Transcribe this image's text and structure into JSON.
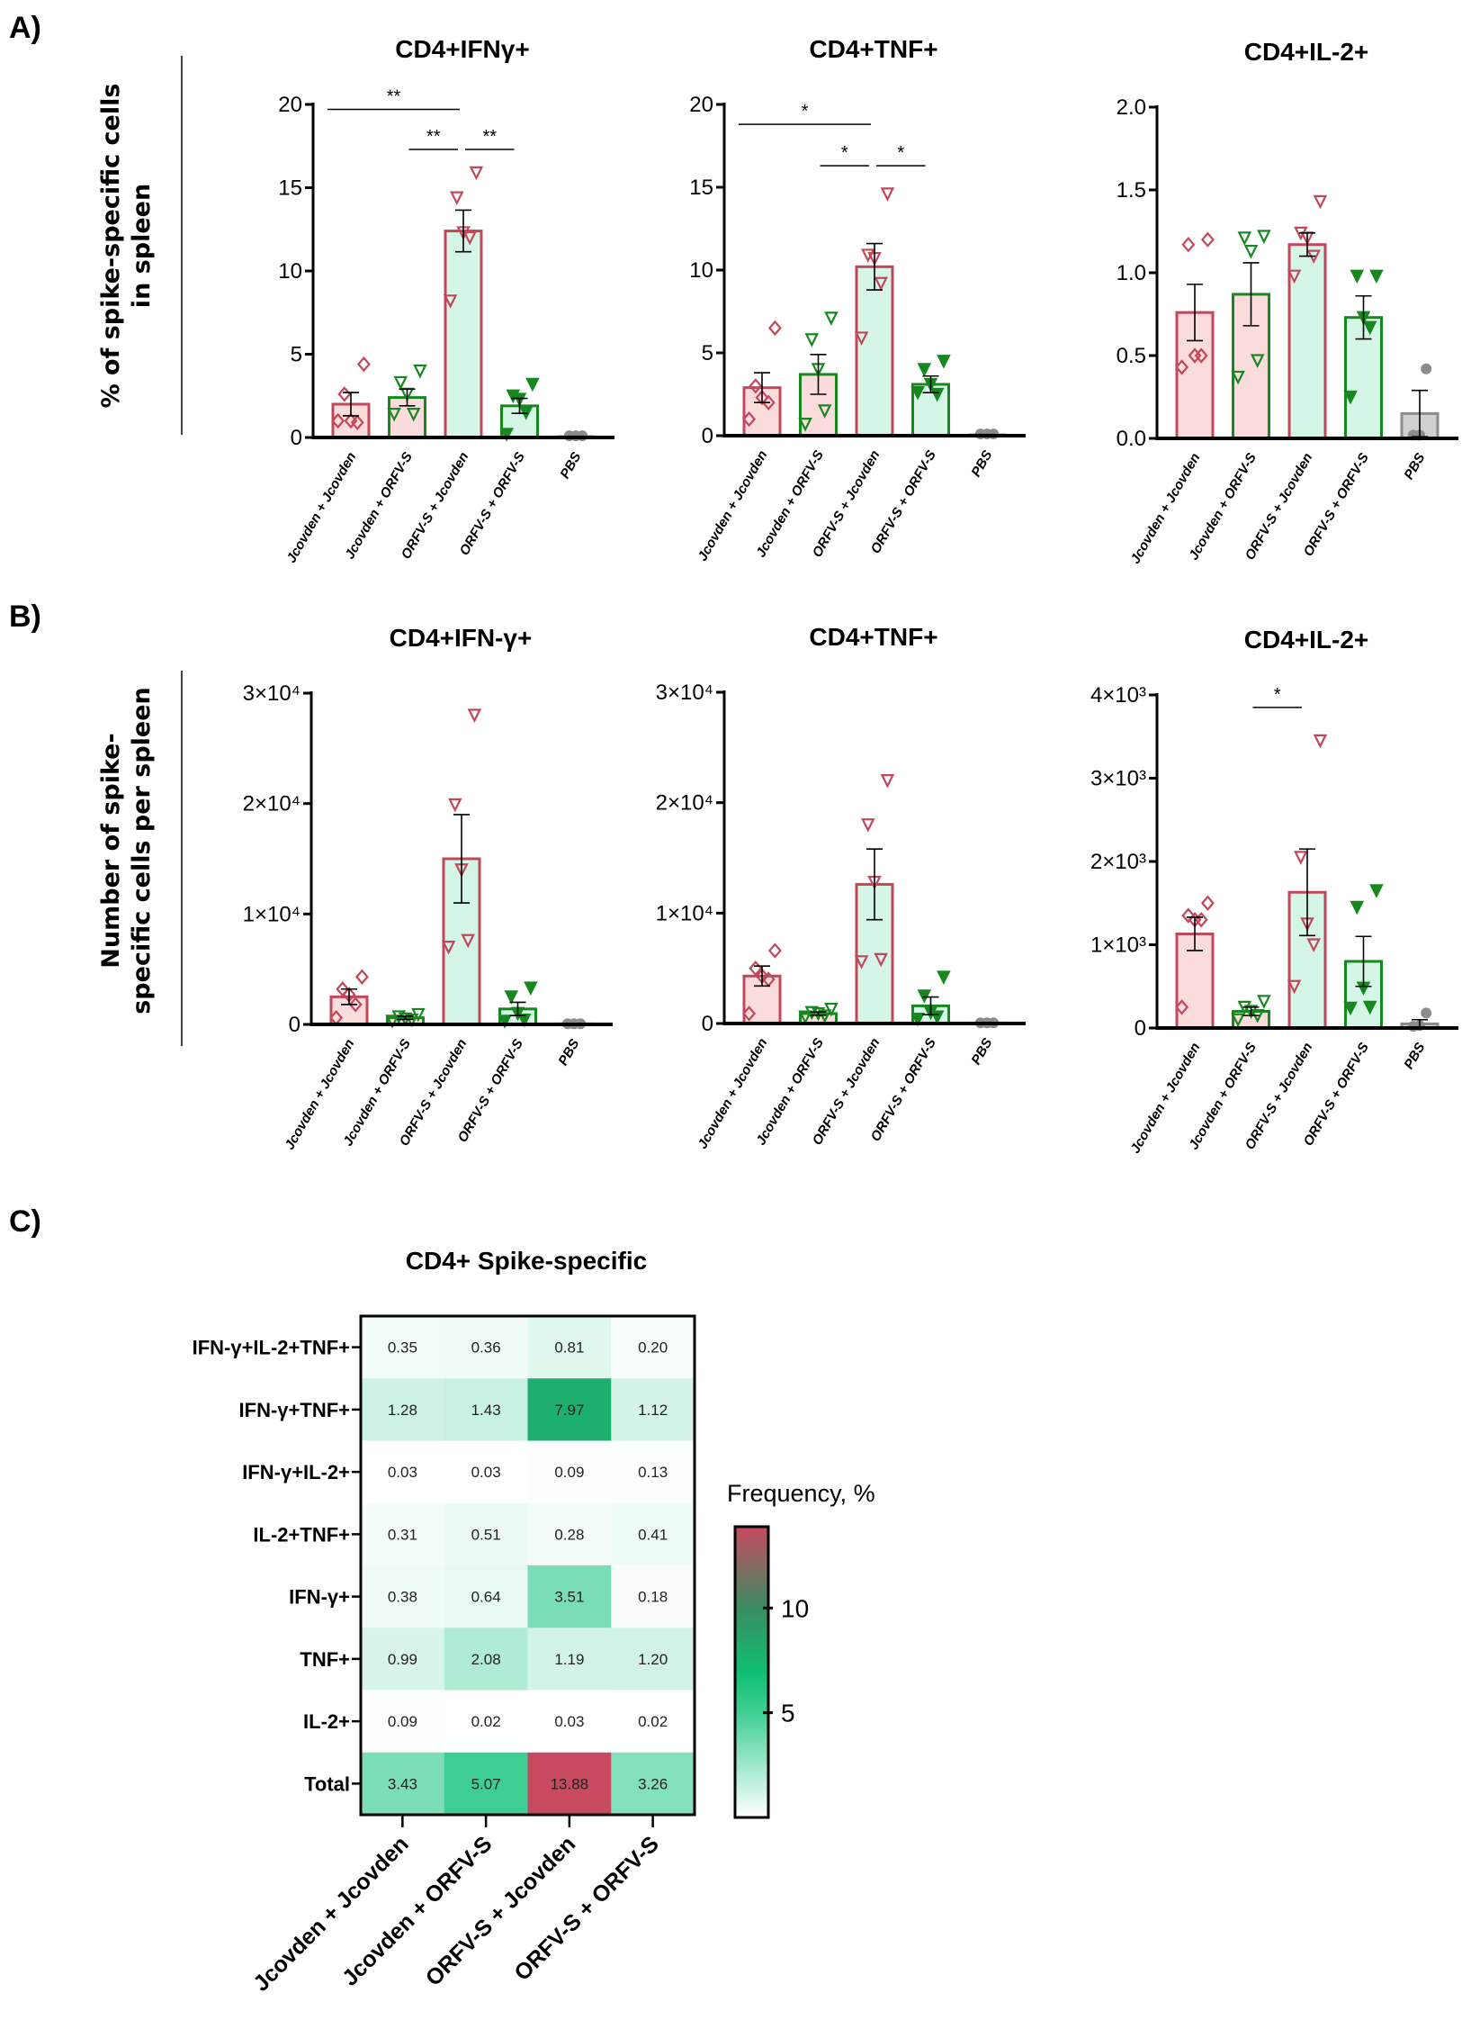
{
  "panels": {
    "a_label": "A)",
    "b_label": "B)",
    "c_label": "C)",
    "a_ylabel": [
      "% of spike-specific cells",
      "in spleen"
    ],
    "b_ylabel": [
      "Number of spike-",
      "specific cells per spleen"
    ]
  },
  "groups": [
    "Jcovden + Jcovden",
    "Jcovden + ORFV-S",
    "ORFV-S + Jcovden",
    "ORFV-S + ORFV-S",
    "PBS"
  ],
  "colors": {
    "red": "#c0485a",
    "green": "#16881f",
    "pink_fill": "#fbdcdc",
    "mint_fill": "#d5f6e7",
    "grey": "#8c8c8c",
    "grey_fill": "#d0d0d0"
  },
  "chart_data": [
    {
      "type": "bar",
      "panel": "A",
      "title": "CD4+IFNγ+",
      "ylim": [
        0,
        20
      ],
      "ticks": [
        0,
        5,
        10,
        15,
        20
      ],
      "tick_labels": [
        "0",
        "5",
        "10",
        "15",
        "20"
      ],
      "means": [
        2.0,
        2.4,
        12.4,
        1.9,
        0.05
      ],
      "sem": [
        0.7,
        0.5,
        1.25,
        0.45,
        0.02
      ],
      "points": [
        [
          4.4,
          2.6,
          1.0,
          0.9,
          1.0
        ],
        [
          4.0,
          3.3,
          2.6,
          1.4,
          1.4
        ],
        [
          15.9,
          14.4,
          12.3,
          12.0,
          8.2
        ],
        [
          3.2,
          2.5,
          2.3,
          1.5,
          0.2
        ],
        [
          0.1,
          0.1,
          0.1
        ]
      ],
      "significance": [
        {
          "from": 0,
          "to": 2,
          "y": 19.7,
          "label": "**"
        },
        {
          "from": 1,
          "to": 2,
          "y": 17.3,
          "label": "**"
        },
        {
          "from": 2,
          "to": 3,
          "y": 17.3,
          "label": "**"
        }
      ]
    },
    {
      "type": "bar",
      "panel": "A",
      "title": "CD4+TNF+",
      "ylim": [
        0,
        20
      ],
      "ticks": [
        0,
        5,
        10,
        15,
        20
      ],
      "tick_labels": [
        "0",
        "5",
        "10",
        "15",
        "20"
      ],
      "means": [
        2.9,
        3.7,
        10.2,
        3.1,
        0.05
      ],
      "sem": [
        0.9,
        1.2,
        1.4,
        0.5,
        0.02
      ],
      "points": [
        [
          6.5,
          3.0,
          2.3,
          2.0,
          1.0
        ],
        [
          7.1,
          5.8,
          4.0,
          1.5,
          0.7
        ],
        [
          14.6,
          10.9,
          10.7,
          9.2,
          5.9
        ],
        [
          4.5,
          4.0,
          3.1,
          2.5,
          2.6
        ],
        [
          0.1,
          0.1,
          0.1
        ]
      ],
      "significance": [
        {
          "from": 0,
          "to": 2,
          "y": 18.8,
          "label": "*"
        },
        {
          "from": 1,
          "to": 2,
          "y": 16.3,
          "label": "*"
        },
        {
          "from": 2,
          "to": 3,
          "y": 16.3,
          "label": "*"
        }
      ]
    },
    {
      "type": "bar",
      "panel": "A",
      "title": "CD4+IL-2+",
      "ylim": [
        0,
        2
      ],
      "ticks": [
        0,
        0.5,
        1,
        1.5,
        2
      ],
      "tick_labels": [
        "0.0",
        "0.5",
        "1.0",
        "1.5",
        "2.0"
      ],
      "means": [
        0.76,
        0.87,
        1.17,
        0.73,
        0.15
      ],
      "sem": [
        0.17,
        0.19,
        0.07,
        0.13,
        0.14
      ],
      "points": [
        [
          1.2,
          1.17,
          0.5,
          0.5,
          0.43
        ],
        [
          1.22,
          1.21,
          1.13,
          0.47,
          0.37
        ],
        [
          1.43,
          1.24,
          1.21,
          1.1,
          0.98
        ],
        [
          0.98,
          0.98,
          0.73,
          0.67,
          0.25
        ],
        [
          0.42,
          0.02,
          0.02
        ]
      ],
      "significance": []
    },
    {
      "type": "bar",
      "panel": "B",
      "title": "CD4+IFN-γ+",
      "ylim": [
        0,
        30000
      ],
      "ticks": [
        0,
        10000,
        20000,
        30000
      ],
      "tick_labels": [
        "0",
        "1×10⁴",
        "2×10⁴",
        "3×10⁴"
      ],
      "means": [
        2500,
        600,
        15000,
        1400,
        50
      ],
      "sem": [
        700,
        150,
        4000,
        600,
        20
      ],
      "points": [
        [
          4300,
          3200,
          2700,
          1800,
          600
        ],
        [
          900,
          700,
          500,
          400,
          300
        ],
        [
          28000,
          19900,
          14000,
          7600,
          7000
        ],
        [
          3300,
          2500,
          1000,
          400,
          300
        ],
        [
          60,
          60,
          60
        ]
      ],
      "significance": []
    },
    {
      "type": "bar",
      "panel": "B",
      "title": "CD4+TNF+",
      "ylim": [
        0,
        30000
      ],
      "ticks": [
        0,
        10000,
        20000,
        30000
      ],
      "tick_labels": [
        "0",
        "1×10⁴",
        "2×10⁴",
        "3×10⁴"
      ],
      "means": [
        4300,
        900,
        12600,
        1600,
        50
      ],
      "sem": [
        900,
        150,
        3200,
        800,
        20
      ],
      "points": [
        [
          6600,
          5000,
          4300,
          4000,
          900
        ],
        [
          1300,
          1000,
          900,
          700,
          600
        ],
        [
          22000,
          18000,
          12800,
          5800,
          5600
        ],
        [
          4200,
          2500,
          1000,
          600,
          400
        ],
        [
          60,
          60,
          60
        ]
      ],
      "significance": []
    },
    {
      "type": "bar",
      "panel": "B",
      "title": "CD4+IL-2+",
      "ylim": [
        0,
        4000
      ],
      "ticks": [
        0,
        1000,
        2000,
        3000,
        4000
      ],
      "tick_labels": [
        "0",
        "1×10³",
        "2×10³",
        "3×10³",
        "4×10³"
      ],
      "means": [
        1130,
        200,
        1630,
        800,
        50
      ],
      "sem": [
        200,
        50,
        520,
        300,
        50
      ],
      "points": [
        [
          1500,
          1350,
          1300,
          1300,
          250
        ],
        [
          320,
          250,
          200,
          150,
          100
        ],
        [
          3450,
          2050,
          1250,
          1000,
          500
        ],
        [
          1650,
          1450,
          480,
          250,
          240
        ],
        [
          180,
          30,
          20
        ]
      ],
      "significance": [
        {
          "from": 1,
          "to": 2,
          "y": 3850,
          "label": "*"
        }
      ]
    },
    {
      "type": "heatmap",
      "panel": "C",
      "title": "CD4+ Spike-specific",
      "rows": [
        "IFN-γ+IL-2+TNF+",
        "IFN-γ+TNF+",
        "IFN-γ+IL-2+",
        "IL-2+TNF+",
        "IFN-γ+",
        "TNF+",
        "IL-2+",
        "Total"
      ],
      "columns": [
        "Jcovden + Jcovden",
        "Jcovden + ORFV-S",
        "ORFV-S + Jcovden",
        "ORFV-S + ORFV-S"
      ],
      "values": [
        [
          "0.35",
          "0.36",
          "0.81",
          "0.20"
        ],
        [
          "1.28",
          "1.43",
          "7.97",
          "1.12"
        ],
        [
          "0.03",
          "0.03",
          "0.09",
          "0.13"
        ],
        [
          "0.31",
          "0.51",
          "0.28",
          "0.41"
        ],
        [
          "0.38",
          "0.64",
          "3.51",
          "0.18"
        ],
        [
          "0.99",
          "2.08",
          "1.19",
          "1.20"
        ],
        [
          "0.09",
          "0.02",
          "0.03",
          "0.02"
        ],
        [
          "3.43",
          "5.07",
          "13.88",
          "3.26"
        ]
      ],
      "colorbar": {
        "label": "Frequency, %",
        "range": [
          0,
          13.88
        ],
        "ticks": [
          5,
          10
        ],
        "tick_labels": [
          "5",
          "10"
        ]
      }
    }
  ]
}
